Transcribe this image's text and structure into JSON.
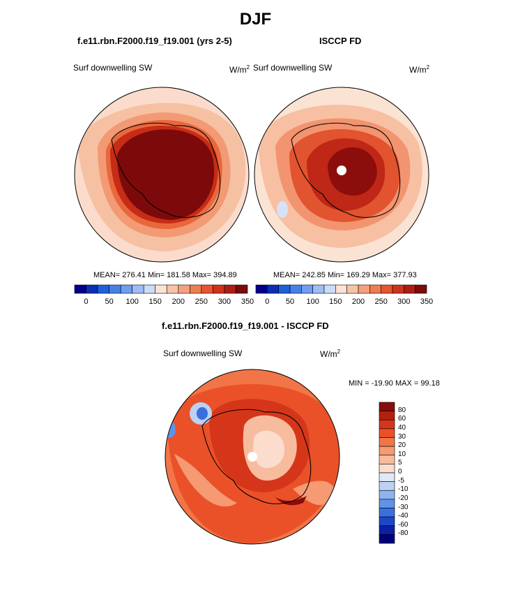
{
  "page_title": "DJF",
  "panels": [
    {
      "case_title": "f.e11.rbn.F2000.f19_f19.001 (yrs 2-5)",
      "variable": "Surf downwelling SW",
      "units": "W/m",
      "units_sup": "2",
      "stats": "MEAN= 276.41  Min= 181.58  Max= 394.89"
    },
    {
      "case_title": "ISCCP FD",
      "variable": "Surf downwelling SW",
      "units": "W/m",
      "units_sup": "2",
      "stats": "MEAN= 242.85  Min= 169.29  Max= 377.93"
    },
    {
      "case_title": "f.e11.rbn.F2000.f19_f19.001 - ISCCP FD",
      "variable": "Surf downwelling SW",
      "units": "W/m",
      "units_sup": "2",
      "stats": "MIN = -19.90 MAX =  99.18"
    }
  ],
  "colorbar_abs": {
    "ticks": [
      "0",
      "50",
      "100",
      "150",
      "200",
      "250",
      "300",
      "350"
    ],
    "colors": [
      "#00008c",
      "#0a2fb4",
      "#1f5fd9",
      "#4680e6",
      "#6f9ef0",
      "#9fbdf4",
      "#cbdcf7",
      "#fbe3d4",
      "#f7c4a6",
      "#f3a27e",
      "#ee7d55",
      "#e75430",
      "#d1311a",
      "#ad1d12",
      "#7c0a0a"
    ]
  },
  "colorbar_diff": {
    "labels": [
      "80",
      "60",
      "40",
      "30",
      "20",
      "10",
      "5",
      "0",
      "-5",
      "-10",
      "-20",
      "-30",
      "-40",
      "-60",
      "-80"
    ],
    "colors": [
      "#8a0b0b",
      "#b3200f",
      "#d5361a",
      "#ea5129",
      "#f27547",
      "#f59a72",
      "#f7bc9d",
      "#fbdccd",
      "#dfe8f8",
      "#bcd1f3",
      "#8fb3ee",
      "#6092e8",
      "#3a6fde",
      "#1c48c7",
      "#0b20a3",
      "#00007a"
    ]
  },
  "chart_data": [
    {
      "type": "heatmap",
      "title": "f.e11.rbn.F2000.f19_f19.001 (yrs 2-5)",
      "subtitle": "Surf downwelling SW",
      "units": "W/m2",
      "season": "DJF",
      "projection": "south polar stereographic",
      "stats": {
        "mean": 276.41,
        "min": 181.58,
        "max": 394.89
      },
      "contour_levels": [
        0,
        25,
        50,
        75,
        100,
        125,
        150,
        175,
        200,
        225,
        250,
        275,
        300,
        325,
        350
      ],
      "colorbar_range": [
        0,
        350
      ]
    },
    {
      "type": "heatmap",
      "title": "ISCCP FD",
      "subtitle": "Surf downwelling SW",
      "units": "W/m2",
      "season": "DJF",
      "projection": "south polar stereographic",
      "stats": {
        "mean": 242.85,
        "min": 169.29,
        "max": 377.93
      },
      "contour_levels": [
        0,
        25,
        50,
        75,
        100,
        125,
        150,
        175,
        200,
        225,
        250,
        275,
        300,
        325,
        350
      ],
      "colorbar_range": [
        0,
        350
      ]
    },
    {
      "type": "heatmap",
      "title": "f.e11.rbn.F2000.f19_f19.001 - ISCCP FD",
      "subtitle": "Surf downwelling SW",
      "units": "W/m2",
      "season": "DJF",
      "projection": "south polar stereographic",
      "stats": {
        "min": -19.9,
        "max": 99.18
      },
      "contour_levels": [
        -80,
        -60,
        -40,
        -30,
        -20,
        -10,
        -5,
        0,
        5,
        10,
        20,
        30,
        40,
        60,
        80
      ]
    }
  ]
}
